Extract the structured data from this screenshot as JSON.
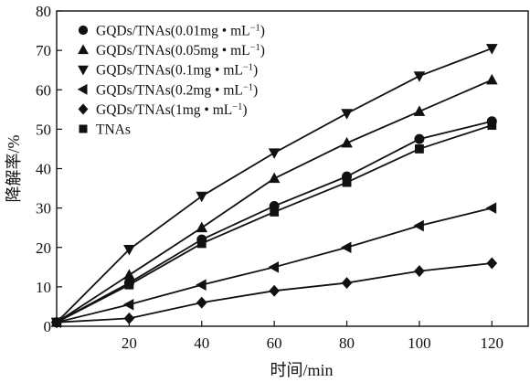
{
  "chart_data": {
    "type": "line",
    "title": "",
    "xlabel": "时间/min",
    "ylabel": "降解率/%",
    "xlim": [
      0,
      130
    ],
    "ylim": [
      0,
      80
    ],
    "xticks": [
      20,
      40,
      60,
      80,
      100,
      120
    ],
    "yticks": [
      0,
      10,
      20,
      30,
      40,
      50,
      60,
      70,
      80
    ],
    "x": [
      0,
      20,
      40,
      60,
      80,
      100,
      120
    ],
    "grid": false,
    "legend_position": "top-left",
    "series": [
      {
        "name": "GQDs/TNAs(0.01mg • mL",
        "name_sup": "−1",
        "name_end": ")",
        "marker": "circle",
        "values": [
          1,
          11,
          22,
          30.5,
          38,
          47.5,
          52
        ]
      },
      {
        "name": "GQDs/TNAs(0.05mg • mL",
        "name_sup": "−1",
        "name_end": ")",
        "marker": "triangle-up",
        "values": [
          1,
          13,
          25,
          37.5,
          46.5,
          54.5,
          62.5
        ]
      },
      {
        "name": "GQDs/TNAs(0.1mg • mL",
        "name_sup": "−1",
        "name_end": ")",
        "marker": "triangle-down",
        "values": [
          1,
          19.5,
          33,
          44,
          54,
          63.5,
          70.5
        ]
      },
      {
        "name": "GQDs/TNAs(0.2mg • mL",
        "name_sup": "−1",
        "name_end": ")",
        "marker": "triangle-left",
        "values": [
          1,
          5.5,
          10.5,
          15,
          20,
          25.5,
          30
        ]
      },
      {
        "name": "GQDs/TNAs(1mg • mL",
        "name_sup": "−1",
        "name_end": ")",
        "marker": "diamond",
        "values": [
          1,
          2,
          6,
          9,
          11,
          14,
          16
        ]
      },
      {
        "name": "TNAs",
        "name_sup": "",
        "name_end": "",
        "marker": "square",
        "values": [
          1,
          10.5,
          21,
          29,
          36.5,
          45,
          51
        ]
      }
    ]
  }
}
